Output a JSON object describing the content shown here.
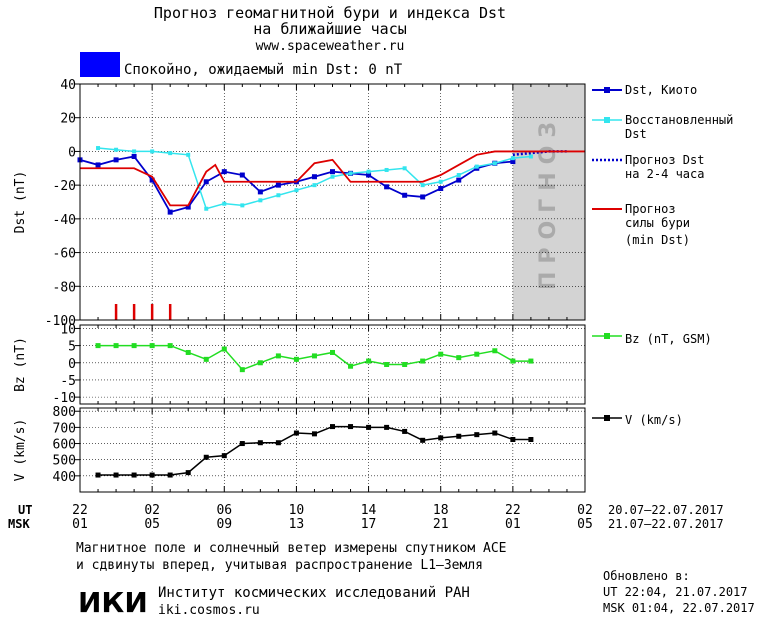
{
  "header": {
    "title_line1": "Прогноз геомагнитной бури и индекса Dst",
    "title_line2": "на ближайшие часы",
    "url": "www.spaceweather.ru",
    "status_text": "Спокойно, ожидаемый min Dst: 0 nT",
    "status_color": "#0000ff"
  },
  "legend": {
    "dst_kyoto": "Dst, Киото",
    "restored_line1": "Восстановленный",
    "restored_line2": "Dst",
    "forecast_line1": "Прогноз Dst",
    "forecast_line2": "на 2-4 часа",
    "storm_line1": "Прогноз",
    "storm_line2": "силы бури",
    "storm_line3": "(min Dst)",
    "bz": "Bz (nT, GSM)",
    "v": "V (km/s)"
  },
  "forecast_zone_label": "ПРОГНОЗ",
  "time_axis": {
    "ut_label": "UT",
    "msk_label": "MSK",
    "ut_ticks": [
      "22",
      "02",
      "06",
      "10",
      "14",
      "18",
      "22",
      "02"
    ],
    "msk_ticks": [
      "01",
      "05",
      "09",
      "13",
      "17",
      "21",
      "01",
      "05"
    ],
    "ut_range": "20.07–22.07.2017",
    "msk_range": "21.07–22.07.2017"
  },
  "footer": {
    "note_line1": "Магнитное поле и солнечный ветер измерены спутником ACE",
    "note_line2": "и сдвинуты вперед, учитывая распространение L1–Земля",
    "logo": "ИКИ",
    "institute": "Институт космических исследований РАН",
    "institute_url": "iki.cosmos.ru",
    "updated_label": "Обновлено в:",
    "updated_ut": "UT  22:04, 21.07.2017",
    "updated_msk": "MSK 01:04, 22.07.2017"
  },
  "colors": {
    "dst_kyoto": "#0000cc",
    "restored": "#33e5ee",
    "forecast": "#0000cc",
    "storm": "#dd0000",
    "bz": "#22dd22",
    "v": "#000000",
    "forecast_zone": "#d3d3d3"
  },
  "chart_data": [
    {
      "type": "line",
      "panel": "dst",
      "ylabel": "Dst (nT)",
      "ylim": [
        -100,
        40
      ],
      "yticks": [
        40,
        20,
        0,
        -20,
        -40,
        -60,
        -80,
        -100
      ],
      "x_unit": "hours from 22 UT, 20.07.2017",
      "xlim": [
        0,
        28
      ],
      "forecast_zone": [
        24,
        28
      ],
      "series": [
        {
          "name": "Dst, Киото",
          "x": [
            0,
            1,
            2,
            3,
            4,
            5,
            6,
            7,
            8,
            9,
            10,
            11,
            12,
            13,
            14,
            15,
            16,
            17,
            18,
            19,
            20,
            21,
            22,
            23,
            24
          ],
          "y": [
            -5,
            -8,
            -5,
            -3,
            -17,
            -36,
            -33,
            -18,
            -12,
            -14,
            -24,
            -20,
            -18,
            -15,
            -12,
            -13,
            -14,
            -21,
            -26,
            -27,
            -22,
            -17,
            -10,
            -7,
            -6
          ]
        },
        {
          "name": "Восстановленный Dst",
          "x": [
            1,
            2,
            3,
            4,
            5,
            6,
            7,
            8,
            9,
            10,
            11,
            12,
            13,
            14,
            15,
            16,
            17,
            18,
            19,
            20,
            21,
            22,
            23,
            24,
            25
          ],
          "y": [
            2,
            1,
            0,
            0,
            -1,
            -2,
            -34,
            -31,
            -32,
            -29,
            -26,
            -23,
            -20,
            -15,
            -13,
            -12,
            -11,
            -10,
            -20,
            -18,
            -14,
            -9,
            -7,
            -4,
            -3
          ]
        },
        {
          "name": "Прогноз Dst на 2-4 часа",
          "x": [
            24,
            25,
            26,
            27
          ],
          "y": [
            -2,
            -1,
            0,
            0
          ]
        },
        {
          "name": "Прогноз силы бури (min Dst)",
          "x": [
            0,
            1,
            2,
            3,
            4,
            5,
            6,
            7,
            7.5,
            8,
            9,
            10,
            11,
            12,
            13,
            14,
            15,
            16,
            17,
            18,
            19,
            20,
            21,
            22,
            23,
            24,
            25,
            26,
            27,
            28
          ],
          "y": [
            -10,
            -10,
            -10,
            -10,
            -15,
            -32,
            -32,
            -12,
            -8,
            -18,
            -18,
            -18,
            -18,
            -18,
            -7,
            -5,
            -18,
            -18,
            -18,
            -18,
            -18,
            -14,
            -8,
            -2,
            0,
            0,
            0,
            0,
            0,
            0
          ]
        }
      ],
      "storm_ticks_x": [
        2,
        3,
        4,
        5
      ]
    },
    {
      "type": "line",
      "panel": "bz",
      "ylabel": "Bz (nT)",
      "ylim": [
        -12,
        11
      ],
      "yticks": [
        10,
        5,
        0,
        -5,
        -10
      ],
      "xlim": [
        0,
        28
      ],
      "series": [
        {
          "name": "Bz (nT, GSM)",
          "x": [
            1,
            2,
            3,
            4,
            5,
            6,
            7,
            8,
            9,
            10,
            11,
            12,
            13,
            14,
            15,
            16,
            17,
            18,
            19,
            20,
            21,
            22,
            23,
            24,
            25
          ],
          "y": [
            5,
            5,
            5,
            5,
            5,
            3,
            1,
            4,
            -2,
            0,
            2,
            1,
            2,
            3,
            -1,
            0.5,
            -0.5,
            -0.5,
            0.5,
            2.5,
            1.5,
            2.5,
            3.5,
            0.5,
            0.5
          ]
        }
      ]
    },
    {
      "type": "line",
      "panel": "v",
      "ylabel": "V (km/s)",
      "ylim": [
        300,
        820
      ],
      "yticks": [
        800,
        700,
        600,
        500,
        400
      ],
      "xlim": [
        0,
        28
      ],
      "series": [
        {
          "name": "V (km/s)",
          "x": [
            1,
            2,
            3,
            4,
            5,
            6,
            7,
            8,
            9,
            10,
            11,
            12,
            13,
            14,
            15,
            16,
            17,
            18,
            19,
            20,
            21,
            22,
            23,
            24,
            25
          ],
          "y": [
            405,
            405,
            405,
            405,
            405,
            420,
            515,
            525,
            600,
            605,
            605,
            665,
            660,
            705,
            705,
            700,
            700,
            675,
            620,
            635,
            645,
            655,
            665,
            625,
            625
          ]
        }
      ]
    }
  ]
}
